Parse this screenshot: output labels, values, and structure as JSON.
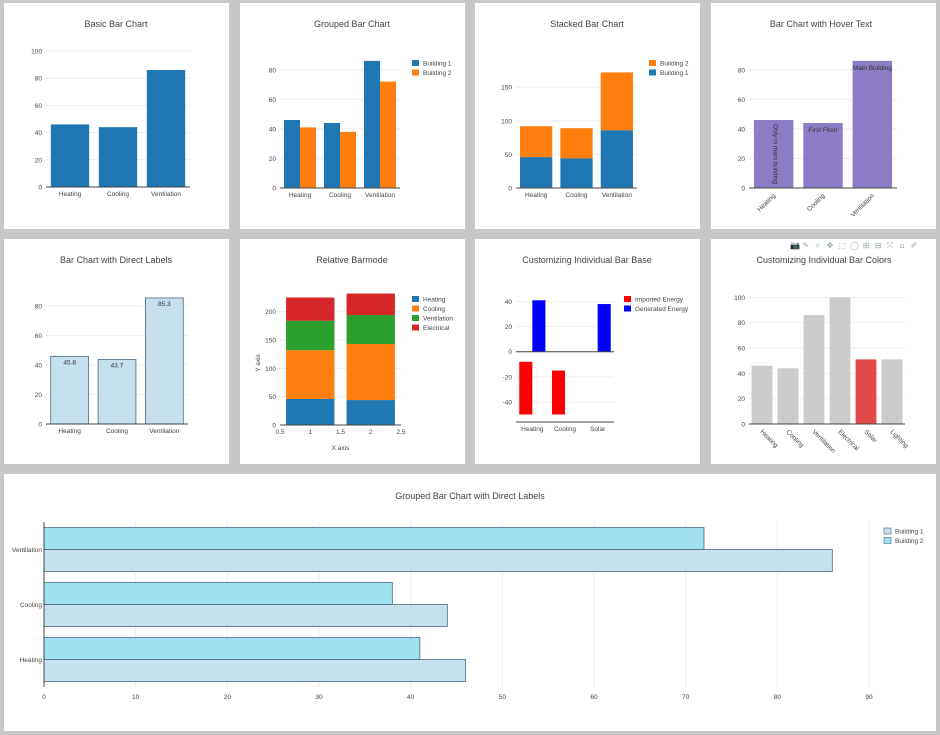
{
  "toolbar": {
    "icons": [
      {
        "name": "camera-icon",
        "glyph": "📷"
      },
      {
        "name": "pencil-icon",
        "glyph": "✎"
      },
      {
        "name": "zoom-icon",
        "glyph": "⌕"
      },
      {
        "name": "pan-icon",
        "glyph": "✥"
      },
      {
        "name": "box-select-icon",
        "glyph": "⬚"
      },
      {
        "name": "lasso-icon",
        "glyph": "◯"
      },
      {
        "name": "zoom-in-icon",
        "glyph": "⊞"
      },
      {
        "name": "zoom-out-icon",
        "glyph": "⊟"
      },
      {
        "name": "autoscale-icon",
        "glyph": "⤧"
      },
      {
        "name": "home-icon",
        "glyph": "⌂"
      },
      {
        "name": "edit-icon",
        "glyph": "✐"
      }
    ]
  },
  "chart_data": [
    {
      "type": "bar",
      "title": "Basic Bar Chart",
      "categories": [
        "Heating",
        "Cooling",
        "Ventilation"
      ],
      "series": [
        {
          "values": [
            46,
            44,
            86
          ],
          "color": "#1f77b4"
        }
      ],
      "ylim": [
        0,
        100
      ],
      "yticks": [
        0,
        20,
        40,
        60,
        80,
        100
      ]
    },
    {
      "type": "bar",
      "title": "Grouped Bar Chart",
      "barmode": "group",
      "categories": [
        "Heating",
        "Cooling",
        "Ventilation"
      ],
      "series": [
        {
          "name": "Building 1",
          "values": [
            46,
            44,
            86
          ],
          "color": "#1f77b4"
        },
        {
          "name": "Building 2",
          "values": [
            41,
            38,
            72
          ],
          "color": "#ff7f0e"
        }
      ],
      "ylim": [
        0,
        90
      ],
      "yticks": [
        0,
        20,
        40,
        60,
        80
      ],
      "legend": "top-right"
    },
    {
      "type": "bar",
      "title": "Stacked Bar Chart",
      "barmode": "stack",
      "categories": [
        "Heating",
        "Cooling",
        "Ventilation"
      ],
      "series": [
        {
          "name": "Building 1",
          "values": [
            46,
            44,
            86
          ],
          "color": "#1f77b4"
        },
        {
          "name": "Building 2",
          "values": [
            46,
            45,
            86
          ],
          "color": "#ff7f0e"
        }
      ],
      "ylim": [
        0,
        180
      ],
      "yticks": [
        0,
        50,
        100,
        150
      ],
      "legend": "top-right"
    },
    {
      "type": "bar",
      "title": "Bar Chart with Hover Text",
      "categories": [
        "Heating",
        "Cooling",
        "Ventilation"
      ],
      "series": [
        {
          "values": [
            46,
            44,
            86
          ],
          "color": "#8c7cc6"
        }
      ],
      "bar_texts": [
        "Only in main building",
        "First Floor",
        "Main Building"
      ],
      "ylim": [
        0,
        90
      ],
      "yticks": [
        0,
        20,
        40,
        60,
        80
      ],
      "tick_angle": -45
    },
    {
      "type": "bar",
      "title": "Bar Chart with Direct Labels",
      "categories": [
        "Heating",
        "Cooling",
        "Ventilation"
      ],
      "series": [
        {
          "values": [
            45.8,
            43.7,
            85.3
          ],
          "color": "#c6e0ee",
          "line": "#4a6a80"
        }
      ],
      "data_labels": [
        "45.8",
        "43.7",
        "85.3"
      ],
      "ylim": [
        0,
        90
      ],
      "yticks": [
        0,
        20,
        40,
        60,
        80
      ]
    },
    {
      "type": "bar",
      "title": "Relative Barmode",
      "barmode": "relative",
      "xlabel": "X axis",
      "ylabel": "Y axis",
      "x": [
        1,
        2
      ],
      "xlim": [
        0.5,
        2.5
      ],
      "xticks": [
        0.5,
        1,
        1.5,
        2,
        2.5
      ],
      "series": [
        {
          "name": "Heating",
          "values": [
            46,
            44
          ],
          "color": "#1f77b4"
        },
        {
          "name": "Cooling",
          "values": [
            86,
            99
          ],
          "color": "#ff7f0e"
        },
        {
          "name": "Ventilation",
          "values": [
            52,
            51
          ],
          "color": "#2ca02c"
        },
        {
          "name": "Electrical",
          "values": [
            41,
            38
          ],
          "color": "#d62728"
        }
      ],
      "ylim": [
        0,
        240
      ],
      "yticks": [
        0,
        50,
        100,
        150,
        200
      ],
      "legend": "top-right"
    },
    {
      "type": "bar",
      "title": "Customizing Individual Bar Base",
      "barmode": "group",
      "categories": [
        "Heating",
        "Cooling",
        "Solar"
      ],
      "series": [
        {
          "name": "Imported Energy",
          "bases": [
            -8,
            -15,
            0
          ],
          "values": [
            -42,
            -35,
            0
          ],
          "color": "#ff0000"
        },
        {
          "name": "Generated Energy",
          "bases": [
            0,
            0,
            0
          ],
          "values": [
            41,
            0,
            38
          ],
          "color": "#0000ff"
        }
      ],
      "ylim": [
        -56,
        46
      ],
      "yticks": [
        -40,
        -20,
        0,
        20,
        40
      ],
      "legend": "top-right"
    },
    {
      "type": "bar",
      "title": "Customizing Individual Bar Colors",
      "categories": [
        "Heating",
        "Cooling",
        "Ventilation",
        "Electrical",
        "Solar",
        "Lighting"
      ],
      "series": [
        {
          "values": [
            46,
            44,
            86,
            100,
            51,
            51
          ],
          "colors": [
            "#cccccc",
            "#cccccc",
            "#cccccc",
            "#cccccc",
            "#e24a4a",
            "#cccccc"
          ]
        }
      ],
      "ylim": [
        0,
        105
      ],
      "yticks": [
        0,
        20,
        40,
        60,
        80,
        100
      ],
      "tick_angle": 45
    },
    {
      "type": "bar",
      "orientation": "h",
      "title": "Grouped Bar Chart with Direct Labels",
      "barmode": "group",
      "categories": [
        "Heating",
        "Cooling",
        "Ventilation"
      ],
      "series": [
        {
          "name": "Building 1",
          "values": [
            46,
            44,
            86
          ],
          "color": "#c6e0ee",
          "line": "#4a6a80"
        },
        {
          "name": "Building 2",
          "values": [
            41,
            38,
            72
          ],
          "color": "#9fe1ef",
          "line": "#4a6a80"
        }
      ],
      "xlim": [
        0,
        90
      ],
      "xticks": [
        0,
        10,
        20,
        30,
        40,
        50,
        60,
        70,
        80,
        90
      ],
      "legend": "top-right"
    }
  ]
}
